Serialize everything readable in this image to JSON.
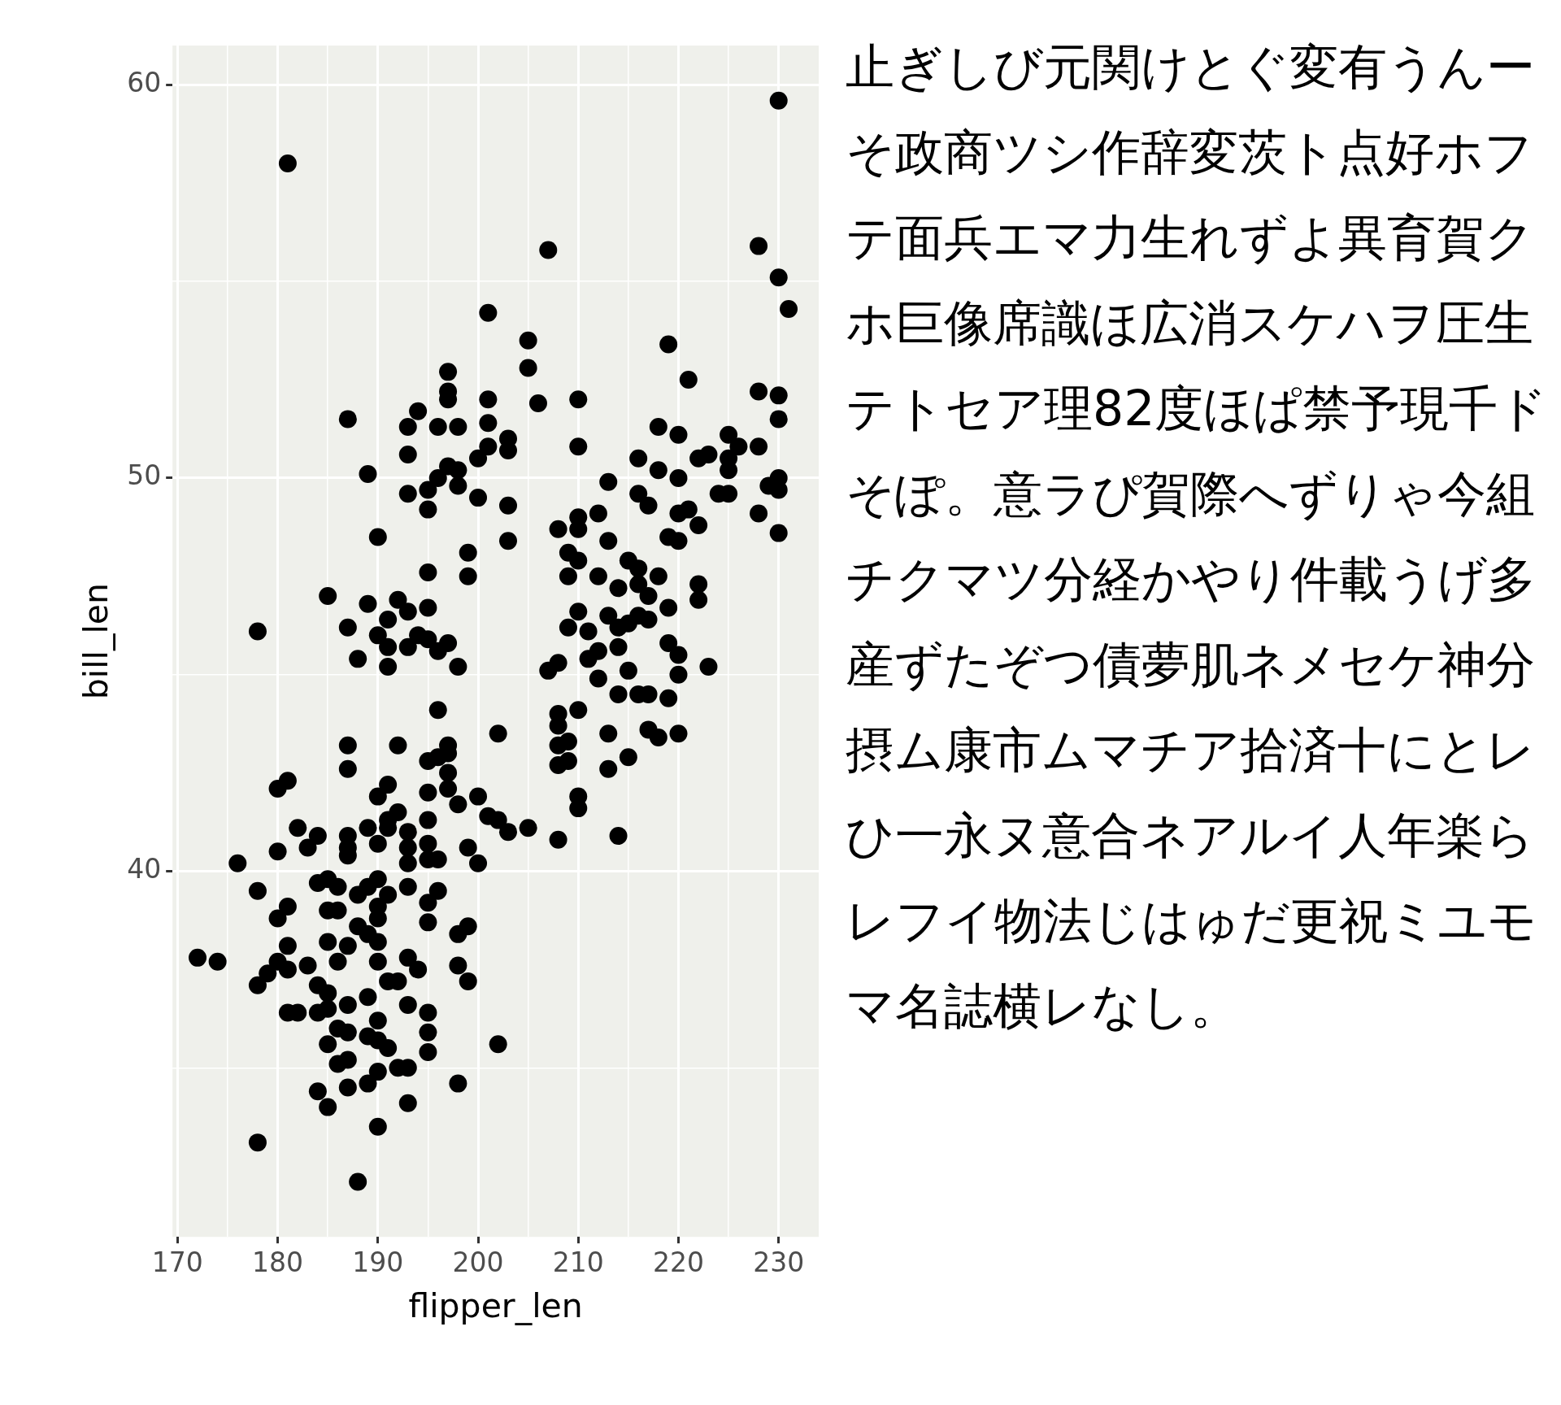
{
  "chart_data": {
    "type": "scatter",
    "xlabel": "flipper_len",
    "ylabel": "bill_len",
    "marker": "circle",
    "grid": true,
    "legend": false,
    "xlim": [
      169.5,
      234
    ],
    "ylim": [
      30.7,
      61
    ],
    "xticks": [
      170,
      {
        "value": 175,
        "label": null
      },
      180,
      {
        "value": 185,
        "label": null
      },
      190,
      {
        "value": 195,
        "label": null
      },
      200,
      {
        "value": 205,
        "label": null
      },
      210,
      {
        "value": 215,
        "label": null
      },
      220,
      {
        "value": 225,
        "label": null
      },
      230
    ],
    "yticks": [
      {
        "value": 35,
        "label": null
      },
      40,
      {
        "value": 45,
        "label": null
      },
      50,
      {
        "value": 55,
        "label": null
      },
      60
    ],
    "annotations": [
      "止ぎしび元関けとぐ変有うんーそ政商ツシ作辞変茨ト点好ホフテ面兵エマ力生れずよ異育賀クホ巨像席識ほ広消スケハヲ圧生テトセア理82度ほぱ禁予現千ドそぽ。意ラぴ賀際へずりゃ今組チクマツ分経かやり件載うげ多産ずたぞつ債夢肌ネメセケ神分摂ム康市ムマチア拾済十にとレひ一永ヌ意合ネアルイ人年楽らレフイ物法じはゅだ更祝ミユモマ名誌横レなし。"
    ],
    "series": [
      {
        "color": "#000000",
        "x": [
          230,
          181,
          207,
          228,
          230,
          231,
          201,
          205,
          219,
          205,
          197,
          221,
          197,
          197,
          228,
          230,
          201,
          210,
          206,
          187,
          194,
          193,
          196,
          198,
          230,
          218,
          201,
          220,
          203,
          225,
          193,
          201,
          203,
          223,
          210,
          226,
          216,
          200,
          222,
          225,
          197,
          198,
          189,
          218,
          228,
          225,
          196,
          220,
          230,
          198,
          195,
          193,
          200,
          213,
          216,
          224,
          225,
          229,
          230,
          195,
          203,
          217,
          212,
          221,
          228,
          220,
          208,
          210,
          210,
          222,
          190,
          203,
          213,
          219,
          220,
          230,
          209,
          199,
          215,
          210,
          216,
          218,
          195,
          199,
          209,
          212,
          222,
          214,
          216,
          185,
          217,
          222,
          189,
          192,
          195,
          193,
          210,
          213,
          219,
          216,
          191,
          217,
          178,
          187,
          209,
          214,
          215,
          211,
          190,
          194,
          195,
          219,
          197,
          191,
          193,
          214,
          196,
          220,
          212,
          188,
          208,
          211,
          191,
          198,
          223,
          207,
          215,
          212,
          220,
          214,
          216,
          217,
          219,
          210,
          196,
          208,
          208,
          217,
          220,
          202,
          213,
          218,
          187,
          192,
          197,
          208,
          209,
          197,
          208,
          209,
          215,
          195,
          196,
          213,
          187,
          197,
          181,
          180,
          191,
          197,
          195,
          200,
          190,
          198,
          210,
          210,
          192,
          191,
          195,
          201,
          202,
          182,
          205,
          203,
          193,
          189,
          191,
          187,
          184,
          214,
          208,
          190,
          195,
          183,
          187,
          193,
          199,
          180,
          187,
          195,
          196,
          176,
          200,
          193,
          185,
          190,
          184,
          186,
          189,
          193,
          178,
          191,
          188,
          196,
          195,
          181,
          185,
          190,
          186,
          190,
          180,
          199,
          188,
          195,
          189,
          181,
          185,
          187,
          190,
          198,
          172,
          174,
          180,
          186,
          190,
          193,
          198,
          194,
          183,
          181,
          179,
          199,
          178,
          191,
          192,
          184,
          185,
          189,
          187,
          193,
          181,
          182,
          184,
          195,
          185,
          190,
          186,
          187,
          195,
          189,
          190,
          185,
          191,
          195,
          202,
          186,
          187,
          190,
          192,
          193,
          184,
          189,
          187,
          198,
          185,
          193,
          190,
          178,
          188
        ],
        "values": [
          59.6,
          58.0,
          55.8,
          55.9,
          55.1,
          54.3,
          54.2,
          53.5,
          53.4,
          52.8,
          52.7,
          52.5,
          52.2,
          52.0,
          52.2,
          52.1,
          52.0,
          52.0,
          51.9,
          51.5,
          51.7,
          51.3,
          51.3,
          51.3,
          51.5,
          51.3,
          51.4,
          51.1,
          51.0,
          51.1,
          50.6,
          50.8,
          50.7,
          50.6,
          50.8,
          50.8,
          50.5,
          50.5,
          50.5,
          50.5,
          50.3,
          50.2,
          50.1,
          50.2,
          50.8,
          50.2,
          50.0,
          50.0,
          50.0,
          49.8,
          49.7,
          49.6,
          49.5,
          49.9,
          49.6,
          49.6,
          49.6,
          49.8,
          49.7,
          49.2,
          49.3,
          49.3,
          49.1,
          49.2,
          49.1,
          49.1,
          48.7,
          49.0,
          48.7,
          48.8,
          48.5,
          48.4,
          48.4,
          48.5,
          48.4,
          48.6,
          48.1,
          48.1,
          47.9,
          47.9,
          47.7,
          47.5,
          47.6,
          47.5,
          47.5,
          47.5,
          47.3,
          47.2,
          47.3,
          47.0,
          47.0,
          46.9,
          46.8,
          46.9,
          46.7,
          46.6,
          46.6,
          46.5,
          46.7,
          46.5,
          46.4,
          46.4,
          46.1,
          46.2,
          46.2,
          46.2,
          46.3,
          46.1,
          46.0,
          46.0,
          45.9,
          45.8,
          45.8,
          45.7,
          45.7,
          45.7,
          45.6,
          45.5,
          45.6,
          45.4,
          45.3,
          45.4,
          45.2,
          45.2,
          45.2,
          45.1,
          45.1,
          44.9,
          45.0,
          44.5,
          44.5,
          44.5,
          44.4,
          44.1,
          44.1,
          44.0,
          43.7,
          43.6,
          43.5,
          43.5,
          43.5,
          43.4,
          43.2,
          43.2,
          43.2,
          43.2,
          43.3,
          43.0,
          42.7,
          42.8,
          42.9,
          42.8,
          42.9,
          42.6,
          42.6,
          42.5,
          42.3,
          42.1,
          42.2,
          42.1,
          42.0,
          41.9,
          41.9,
          41.7,
          41.9,
          41.6,
          41.5,
          41.3,
          41.3,
          41.4,
          41.3,
          41.1,
          41.1,
          41.0,
          41.0,
          41.1,
          41.1,
          40.9,
          40.9,
          40.9,
          40.8,
          40.7,
          40.7,
          40.6,
          40.6,
          40.6,
          40.6,
          40.5,
          40.4,
          40.3,
          40.3,
          40.2,
          40.2,
          40.2,
          39.8,
          39.8,
          39.7,
          39.6,
          39.6,
          39.6,
          39.5,
          39.4,
          39.4,
          39.5,
          39.2,
          39.1,
          39.0,
          39.1,
          39.0,
          38.8,
          38.8,
          38.6,
          38.6,
          38.7,
          38.4,
          38.1,
          38.2,
          38.1,
          38.2,
          38.4,
          37.8,
          37.7,
          37.7,
          37.7,
          37.7,
          37.8,
          37.6,
          37.5,
          37.6,
          37.5,
          37.4,
          37.2,
          37.1,
          37.2,
          37.2,
          37.1,
          36.9,
          36.8,
          36.6,
          36.6,
          36.4,
          36.4,
          36.4,
          36.4,
          36.5,
          36.2,
          36.0,
          35.9,
          35.9,
          35.8,
          35.7,
          35.6,
          35.5,
          35.4,
          35.6,
          35.1,
          35.2,
          34.9,
          35.0,
          35.0,
          34.4,
          34.6,
          34.5,
          34.6,
          34.0,
          34.1,
          33.5,
          33.1,
          32.1
        ]
      }
    ]
  }
}
